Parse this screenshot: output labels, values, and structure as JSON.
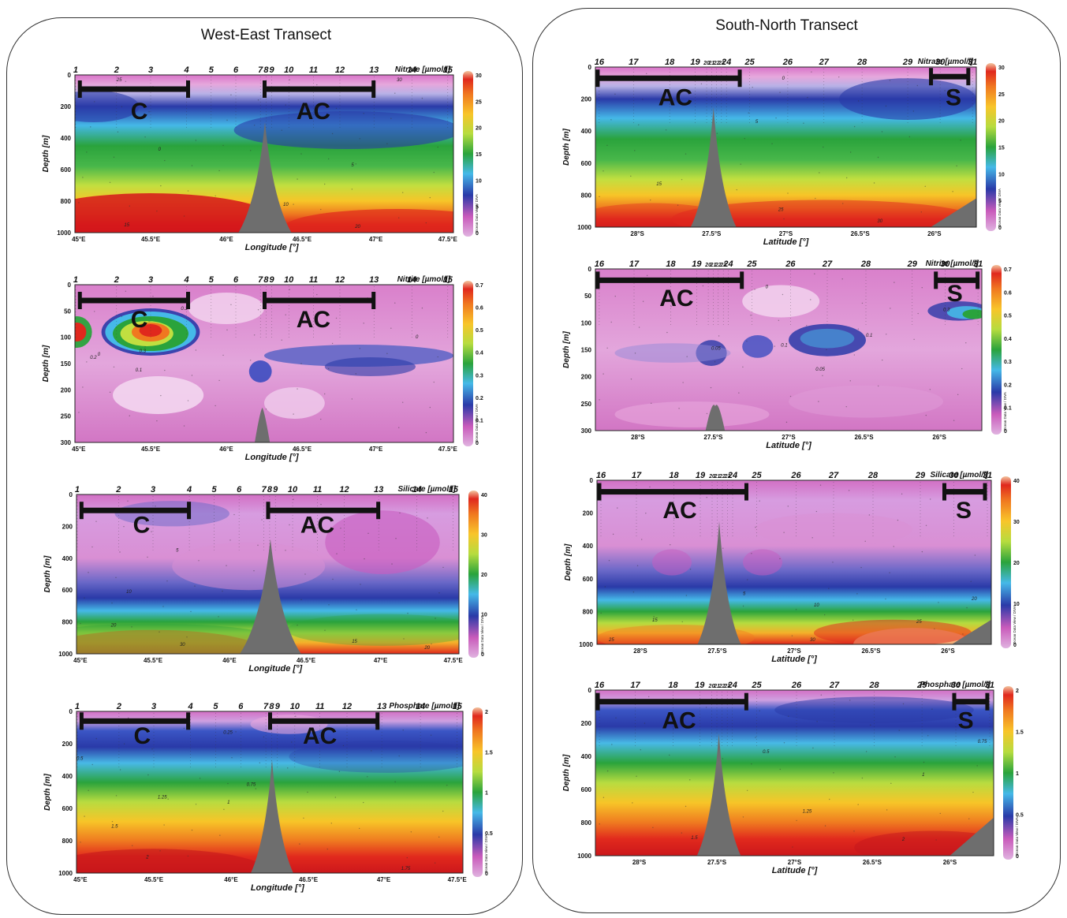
{
  "titles": {
    "west_east": "West-East Transect",
    "south_north": "South-North Transect"
  },
  "colorbar_caption": "Ocean Data View / DIVA",
  "west_east": {
    "xlabel": "Longitude [°]",
    "ylabel": "Depth [m]",
    "x_ticks": [
      "45°E",
      "45.5°E",
      "46°E",
      "46.5°E",
      "47°E",
      "47.5°E"
    ],
    "stations": [
      "1",
      "2",
      "3",
      "4",
      "5",
      "6",
      "7",
      "8",
      "9",
      "10",
      "11",
      "12",
      "13",
      "14",
      "15"
    ],
    "labels": {
      "C": "C",
      "AC": "AC"
    }
  },
  "south_north": {
    "xlabel_a": "Latitude [°]",
    "xlabel_b": "Latitude [°]",
    "ylabel": "Depth [m]",
    "x_ticks": [
      "28°S",
      "27.5°S",
      "27°S",
      "26.5°S",
      "26°S"
    ],
    "stations": [
      "16",
      "17",
      "18",
      "19",
      "20",
      "21",
      "22",
      "23",
      "24",
      "25",
      "26",
      "27",
      "28",
      "29",
      "30",
      "31"
    ],
    "labels": {
      "AC": "AC",
      "S": "S"
    }
  },
  "chart_data": [
    {
      "type": "heatmap",
      "transect": "West-East",
      "variable": "Nitrate [µmol/l]",
      "xlabel": "Longitude [°]",
      "ylabel": "Depth [m]",
      "y_ticks": [
        "0",
        "200",
        "400",
        "600",
        "800",
        "1000"
      ],
      "cbar_ticks": [
        "30",
        "25",
        "20",
        "15",
        "10",
        "5",
        "0"
      ],
      "contour_labels": [
        "0",
        "5",
        "10",
        "15",
        "20",
        "25",
        "30"
      ],
      "values": [
        [
          0,
          4,
          10,
          16,
          22,
          28,
          31
        ],
        [
          0,
          2,
          8,
          14,
          20,
          26,
          30
        ],
        [
          0,
          1,
          5,
          11,
          17,
          23,
          28
        ],
        [
          0,
          1,
          4,
          9,
          15,
          21,
          26
        ]
      ]
    },
    {
      "type": "heatmap",
      "transect": "West-East",
      "variable": "Nitrite [µmol/l]",
      "xlabel": "Longitude [°]",
      "ylabel": "Depth [m]",
      "y_ticks": [
        "0",
        "50",
        "100",
        "150",
        "200",
        "250",
        "300"
      ],
      "cbar_ticks": [
        "0.7",
        "0.6",
        "0.5",
        "0.4",
        "0.3",
        "0.2",
        "0.1",
        "0"
      ],
      "contour_labels": [
        "0.1",
        "0.2",
        "0.3",
        "0",
        "0.1",
        "0"
      ],
      "values": [
        [
          0,
          0.3,
          0.6,
          0.2,
          0.05,
          0
        ],
        [
          0,
          0.1,
          0.1,
          0.05,
          0,
          0
        ],
        [
          0,
          0,
          0.1,
          0.1,
          0.05,
          0
        ]
      ]
    },
    {
      "type": "heatmap",
      "transect": "West-East",
      "variable": "Silicate [µmol/l]",
      "xlabel": "Longitude [°]",
      "ylabel": "Depth [m]",
      "y_ticks": [
        "0",
        "200",
        "400",
        "600",
        "800",
        "1000"
      ],
      "cbar_ticks": [
        "40",
        "30",
        "20",
        "10",
        "0"
      ],
      "contour_labels": [
        "5",
        "10",
        "20",
        "30",
        "15",
        "20"
      ],
      "values": [
        [
          2,
          4,
          6,
          12,
          22,
          35
        ],
        [
          2,
          3,
          5,
          9,
          16,
          24
        ]
      ]
    },
    {
      "type": "heatmap",
      "transect": "West-East",
      "variable": "Phosphate [µmol/l]",
      "xlabel": "Longitude [°]",
      "ylabel": "Depth [m]",
      "y_ticks": [
        "0",
        "200",
        "400",
        "600",
        "800",
        "1000"
      ],
      "cbar_ticks": [
        "2",
        "1.5",
        "1",
        "0.5",
        "0"
      ],
      "contour_labels": [
        "0.5",
        "0.25",
        "0.75",
        "1",
        "1.25",
        "1.5",
        "2",
        "1.75"
      ],
      "values": [
        [
          0,
          0.5,
          1.0,
          1.5,
          2.0,
          2.2
        ],
        [
          0,
          0.3,
          0.8,
          1.2,
          1.6,
          1.9
        ]
      ]
    },
    {
      "type": "heatmap",
      "transect": "South-North",
      "variable": "Nitrate [µmol/l]",
      "xlabel": "Latitude [°]",
      "ylabel": "Depth [m]",
      "y_ticks": [
        "0",
        "200",
        "400",
        "600",
        "800",
        "1000"
      ],
      "cbar_ticks": [
        "30",
        "25",
        "20",
        "15",
        "10",
        "5",
        "0"
      ],
      "contour_labels": [
        "0",
        "5",
        "15",
        "25",
        "30"
      ],
      "values": [
        [
          0,
          4,
          11,
          17,
          23,
          30
        ],
        [
          0,
          5,
          12,
          18,
          25,
          31
        ]
      ]
    },
    {
      "type": "heatmap",
      "transect": "South-North",
      "variable": "Nitrite [µmol/l]",
      "xlabel": "Latitude [°]",
      "ylabel": "Depth [m]",
      "y_ticks": [
        "0",
        "50",
        "100",
        "150",
        "200",
        "250",
        "300"
      ],
      "cbar_ticks": [
        "0.7",
        "0.6",
        "0.5",
        "0.4",
        "0.3",
        "0.2",
        "0.1",
        "0"
      ],
      "contour_labels": [
        "0",
        "0.05",
        "0.1",
        "0.05",
        "0.1",
        "0.3"
      ],
      "values": [
        [
          0,
          0.05,
          0.1,
          0.02,
          0
        ],
        [
          0,
          0.1,
          0.3,
          0.1,
          0
        ]
      ]
    },
    {
      "type": "heatmap",
      "transect": "South-North",
      "variable": "Silicate [µmol/l]",
      "xlabel": "Latitude [°]",
      "ylabel": "Depth [m]",
      "y_ticks": [
        "0",
        "200",
        "400",
        "600",
        "800",
        "1000"
      ],
      "cbar_ticks": [
        "40",
        "30",
        "20",
        "10",
        "0"
      ],
      "contour_labels": [
        "5",
        "10",
        "15",
        "20",
        "25",
        "30",
        "25"
      ],
      "values": [
        [
          2,
          4,
          8,
          16,
          28,
          40
        ],
        [
          2,
          5,
          10,
          20,
          30,
          38
        ]
      ]
    },
    {
      "type": "heatmap",
      "transect": "South-North",
      "variable": "Phosphate [µmol/l]",
      "xlabel": "Latitude [°]",
      "ylabel": "Depth [m]",
      "y_ticks": [
        "0",
        "200",
        "400",
        "600",
        "800",
        "1000"
      ],
      "cbar_ticks": [
        "2",
        "1.5",
        "1",
        "0.5",
        "0"
      ],
      "contour_labels": [
        "0.5",
        "0.75",
        "1",
        "1.25",
        "1.5",
        "2"
      ],
      "values": [
        [
          0,
          0.5,
          1.0,
          1.5,
          2.0,
          2.2
        ],
        [
          0,
          0.6,
          1.1,
          1.6,
          2.0,
          2.3
        ]
      ]
    }
  ]
}
